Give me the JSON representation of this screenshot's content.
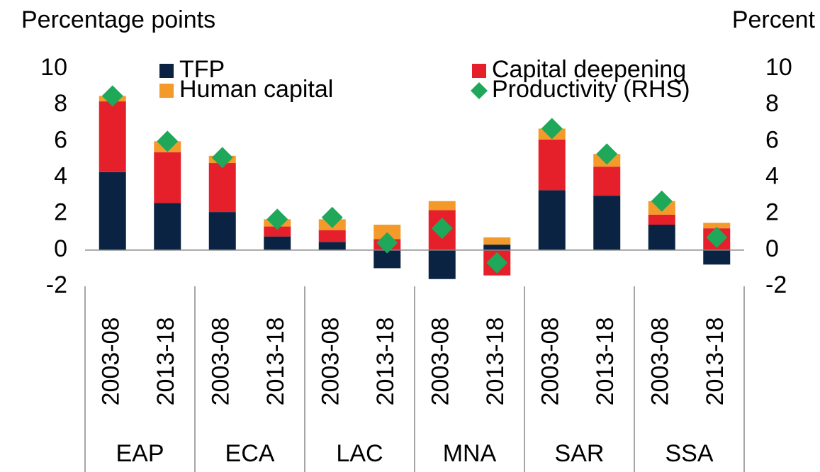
{
  "chart_data": {
    "type": "bar",
    "stacked": true,
    "y_label": "Percentage points",
    "y2_label": "Percent",
    "categories": [
      "2003-08",
      "2013-18",
      "2003-08",
      "2013-18",
      "2003-08",
      "2013-18",
      "2003-08",
      "2013-18",
      "2003-08",
      "2013-18",
      "2003-08",
      "2013-18"
    ],
    "groups": [
      "EAP",
      "ECA",
      "LAC",
      "MNA",
      "SAR",
      "SSA"
    ],
    "series": [
      {
        "name": "TFP",
        "color": "#0b2343",
        "values": [
          4.3,
          2.6,
          2.1,
          0.75,
          0.45,
          -1.0,
          -1.6,
          0.3,
          3.3,
          3.0,
          1.4,
          -0.8
        ]
      },
      {
        "name": "Capital deepening",
        "color": "#e5202a",
        "values": [
          3.9,
          2.8,
          2.7,
          0.55,
          0.65,
          0.6,
          2.2,
          -1.4,
          2.8,
          1.6,
          0.55,
          1.2
        ]
      },
      {
        "name": "Human capital",
        "color": "#f39a2b",
        "values": [
          0.3,
          0.6,
          0.4,
          0.4,
          0.6,
          0.8,
          0.5,
          0.4,
          0.6,
          0.7,
          0.75,
          0.3
        ]
      },
      {
        "name": "Productivity (RHS)",
        "color": "#1fa85a",
        "type": "scatter",
        "marker": "diamond",
        "axis": "y2",
        "values": [
          8.5,
          6.0,
          5.1,
          1.7,
          1.8,
          0.4,
          1.2,
          -0.7,
          6.7,
          5.3,
          2.7,
          0.7
        ]
      }
    ],
    "ylim": [
      -2,
      10
    ],
    "yticks": [
      -2,
      0,
      2,
      4,
      6,
      8,
      10
    ],
    "y2lim": [
      -2,
      10
    ],
    "y2ticks": [
      -2,
      0,
      2,
      4,
      6,
      8,
      10
    ]
  }
}
